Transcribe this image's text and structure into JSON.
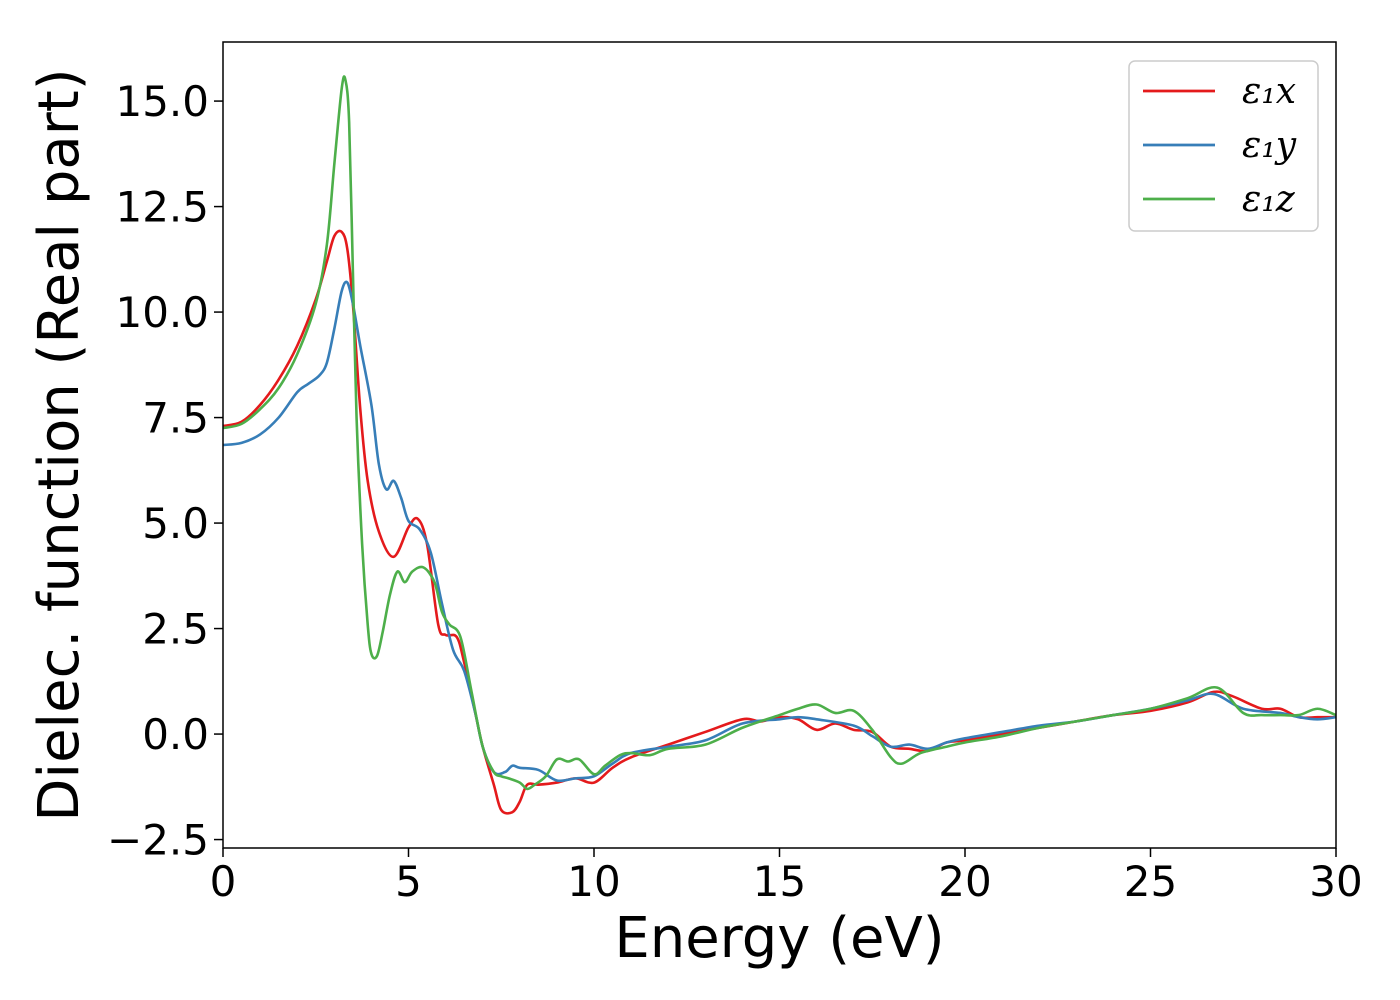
{
  "chart_data": {
    "type": "line",
    "xlabel": "Energy (eV)",
    "ylabel": "Dielec. function (Real part)",
    "xlim": [
      0,
      30
    ],
    "ylim": [
      -2.7,
      16.4
    ],
    "xticks": [
      0,
      5,
      10,
      15,
      20,
      25,
      30
    ],
    "xtick_labels": [
      "0",
      "5",
      "10",
      "15",
      "20",
      "25",
      "30"
    ],
    "yticks": [
      -2.5,
      0.0,
      2.5,
      5.0,
      7.5,
      10.0,
      12.5,
      15.0
    ],
    "ytick_labels": [
      "−2.5",
      "0.0",
      "2.5",
      "5.0",
      "7.5",
      "10.0",
      "12.5",
      "15.0"
    ],
    "grid": false,
    "legend_position": "top-right",
    "series": [
      {
        "name": "ε₁x",
        "color": "#e41a1c",
        "x": [
          0,
          0.5,
          1,
          1.5,
          2,
          2.5,
          2.8,
          3.0,
          3.2,
          3.35,
          3.5,
          3.7,
          3.9,
          4.2,
          4.6,
          5.0,
          5.25,
          5.5,
          5.8,
          6.0,
          6.3,
          6.5,
          6.8,
          7.0,
          7.3,
          7.5,
          7.8,
          8.0,
          8.2,
          8.5,
          9.0,
          9.5,
          10.0,
          10.5,
          11.0,
          12.0,
          13.0,
          14.0,
          14.5,
          15.0,
          15.5,
          16.0,
          16.5,
          17.0,
          17.5,
          18.0,
          18.5,
          19.0,
          19.5,
          20.0,
          21.0,
          22.0,
          23.0,
          24.0,
          25.0,
          26.0,
          26.7,
          27.2,
          28.0,
          28.5,
          29.0,
          29.5,
          30.0
        ],
        "y": [
          7.3,
          7.4,
          7.8,
          8.4,
          9.2,
          10.3,
          11.2,
          11.8,
          11.9,
          11.5,
          10.2,
          7.7,
          6.0,
          4.8,
          4.2,
          4.9,
          5.1,
          4.5,
          2.6,
          2.35,
          2.3,
          1.7,
          0.5,
          -0.3,
          -1.2,
          -1.8,
          -1.85,
          -1.6,
          -1.2,
          -1.2,
          -1.15,
          -1.05,
          -1.15,
          -0.8,
          -0.55,
          -0.25,
          0.05,
          0.35,
          0.3,
          0.4,
          0.35,
          0.1,
          0.25,
          0.1,
          0.05,
          -0.3,
          -0.35,
          -0.4,
          -0.2,
          -0.15,
          0.0,
          0.15,
          0.3,
          0.45,
          0.55,
          0.75,
          1.0,
          0.9,
          0.6,
          0.6,
          0.4,
          0.4,
          0.4
        ]
      },
      {
        "name": "ε₁y",
        "color": "#377eb8",
        "x": [
          0,
          0.5,
          1,
          1.5,
          2,
          2.3,
          2.6,
          2.8,
          3.0,
          3.2,
          3.35,
          3.5,
          3.7,
          4.0,
          4.2,
          4.4,
          4.6,
          4.8,
          5.0,
          5.3,
          5.6,
          5.9,
          6.2,
          6.5,
          6.8,
          7.0,
          7.3,
          7.6,
          7.8,
          8.0,
          8.5,
          9.0,
          9.5,
          10.0,
          10.5,
          11.0,
          12.0,
          13.0,
          14.0,
          15.0,
          15.5,
          16.0,
          17.0,
          17.5,
          18.0,
          18.5,
          19.0,
          19.5,
          20.0,
          21.0,
          22.0,
          23.0,
          24.0,
          25.0,
          26.0,
          26.7,
          27.5,
          28.5,
          29.0,
          29.5,
          30.0
        ],
        "y": [
          6.85,
          6.9,
          7.1,
          7.5,
          8.1,
          8.3,
          8.5,
          8.8,
          9.6,
          10.5,
          10.7,
          10.2,
          9.2,
          7.8,
          6.4,
          5.8,
          6.0,
          5.6,
          5.05,
          4.85,
          4.3,
          3.1,
          2.0,
          1.5,
          0.5,
          -0.3,
          -0.9,
          -0.9,
          -0.75,
          -0.8,
          -0.85,
          -1.1,
          -1.05,
          -1.0,
          -0.7,
          -0.45,
          -0.3,
          -0.15,
          0.25,
          0.35,
          0.4,
          0.35,
          0.2,
          -0.05,
          -0.3,
          -0.25,
          -0.35,
          -0.2,
          -0.1,
          0.05,
          0.2,
          0.3,
          0.45,
          0.6,
          0.8,
          0.95,
          0.6,
          0.5,
          0.4,
          0.35,
          0.4
        ]
      },
      {
        "name": "ε₁z",
        "color": "#4daf4a",
        "x": [
          0,
          0.5,
          1,
          1.5,
          2,
          2.5,
          2.8,
          3.0,
          3.2,
          3.3,
          3.4,
          3.5,
          3.6,
          3.75,
          3.9,
          4.0,
          4.15,
          4.3,
          4.5,
          4.7,
          4.9,
          5.1,
          5.4,
          5.7,
          5.9,
          6.1,
          6.4,
          6.7,
          7.0,
          7.3,
          7.5,
          7.7,
          8.0,
          8.2,
          8.4,
          8.7,
          9.0,
          9.3,
          9.6,
          10.0,
          10.3,
          10.7,
          11.0,
          11.5,
          12.0,
          13.0,
          14.0,
          15.0,
          15.5,
          16.0,
          16.5,
          17.0,
          17.5,
          18.0,
          18.3,
          18.8,
          19.5,
          20.0,
          21.0,
          22.0,
          23.0,
          24.0,
          25.0,
          26.0,
          26.8,
          27.5,
          28.0,
          28.5,
          29.0,
          29.5,
          30.0
        ],
        "y": [
          7.25,
          7.35,
          7.7,
          8.2,
          9.0,
          10.2,
          11.6,
          13.5,
          15.3,
          15.5,
          14.5,
          11.0,
          7.5,
          4.5,
          2.6,
          1.9,
          1.85,
          2.4,
          3.3,
          3.85,
          3.6,
          3.85,
          3.95,
          3.6,
          2.9,
          2.6,
          2.3,
          1.0,
          -0.3,
          -0.9,
          -1.0,
          -1.05,
          -1.15,
          -1.3,
          -1.2,
          -1.0,
          -0.6,
          -0.65,
          -0.6,
          -0.95,
          -0.75,
          -0.5,
          -0.45,
          -0.5,
          -0.35,
          -0.25,
          0.15,
          0.45,
          0.6,
          0.7,
          0.5,
          0.55,
          0.1,
          -0.55,
          -0.7,
          -0.45,
          -0.3,
          -0.2,
          -0.05,
          0.15,
          0.3,
          0.45,
          0.6,
          0.85,
          1.1,
          0.5,
          0.45,
          0.45,
          0.45,
          0.6,
          0.45
        ]
      }
    ]
  }
}
